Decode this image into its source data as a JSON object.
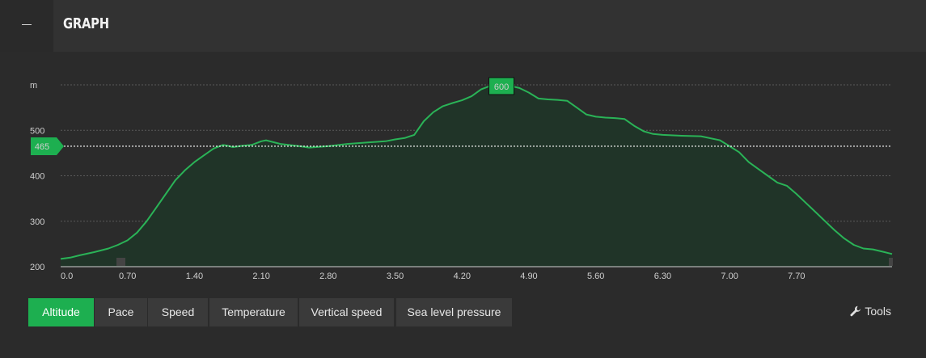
{
  "header": {
    "title": "GRAPH"
  },
  "tabs": [
    {
      "label": "Altitude",
      "active": true
    },
    {
      "label": "Pace",
      "active": false
    },
    {
      "label": "Speed",
      "active": false
    },
    {
      "label": "Temperature",
      "active": false
    },
    {
      "label": "Vertical speed",
      "active": false
    },
    {
      "label": "Sea level pressure",
      "active": false
    }
  ],
  "tools": {
    "label": "Tools",
    "icon": "wrench-icon"
  },
  "colors": {
    "accent": "#1daf50",
    "line": "#2ab357",
    "fill": "#203428"
  },
  "chart_data": {
    "type": "area",
    "ylabel": "m",
    "xlabel": "",
    "ylim": [
      200,
      600
    ],
    "yticks": [
      200,
      300,
      400,
      500
    ],
    "xlim": [
      0,
      8.7
    ],
    "xtick_labels": [
      "0.0",
      "0.70",
      "1.40",
      "2.10",
      "2.80",
      "3.50",
      "4.20",
      "4.90",
      "5.60",
      "6.30",
      "7.00",
      "7.70"
    ],
    "xtick_values": [
      0,
      0.7,
      1.4,
      2.1,
      2.8,
      3.5,
      4.2,
      4.9,
      5.6,
      6.3,
      7.0,
      7.7
    ],
    "reference_line": {
      "value": 465,
      "label": "465"
    },
    "max_marker": {
      "x": 4.6,
      "value": 600,
      "label": "600"
    },
    "grid": true,
    "series": [
      {
        "x": [
          0,
          0.1,
          0.2,
          0.35,
          0.5,
          0.6,
          0.7,
          0.8,
          0.9,
          1.0,
          1.1,
          1.2,
          1.3,
          1.4,
          1.5,
          1.6,
          1.7,
          1.75,
          1.8,
          1.9,
          2.0,
          2.1,
          2.15,
          2.3,
          2.5,
          2.6,
          2.8,
          3.0,
          3.2,
          3.4,
          3.5,
          3.6,
          3.7,
          3.8,
          3.9,
          4.0,
          4.1,
          4.2,
          4.3,
          4.4,
          4.5,
          4.6,
          4.7,
          4.8,
          4.9,
          5.0,
          5.1,
          5.2,
          5.3,
          5.4,
          5.5,
          5.6,
          5.7,
          5.8,
          5.9,
          6.0,
          6.1,
          6.2,
          6.3,
          6.5,
          6.7,
          6.9,
          7.0,
          7.1,
          7.2,
          7.3,
          7.4,
          7.5,
          7.6,
          7.7,
          7.8,
          7.9,
          8.0,
          8.1,
          8.2,
          8.3,
          8.4,
          8.5,
          8.6,
          8.7
        ],
        "values": [
          217,
          220,
          225,
          232,
          240,
          248,
          258,
          275,
          300,
          330,
          360,
          390,
          412,
          430,
          445,
          460,
          468,
          466,
          463,
          466,
          468,
          476,
          478,
          470,
          465,
          462,
          465,
          470,
          473,
          476,
          480,
          483,
          490,
          520,
          540,
          553,
          560,
          566,
          575,
          590,
          598,
          600,
          598,
          593,
          583,
          570,
          568,
          567,
          565,
          550,
          535,
          530,
          528,
          527,
          525,
          510,
          498,
          492,
          490,
          488,
          487,
          478,
          465,
          452,
          430,
          415,
          400,
          385,
          378,
          360,
          340,
          320,
          300,
          280,
          262,
          248,
          240,
          238,
          233,
          228
        ]
      }
    ]
  }
}
